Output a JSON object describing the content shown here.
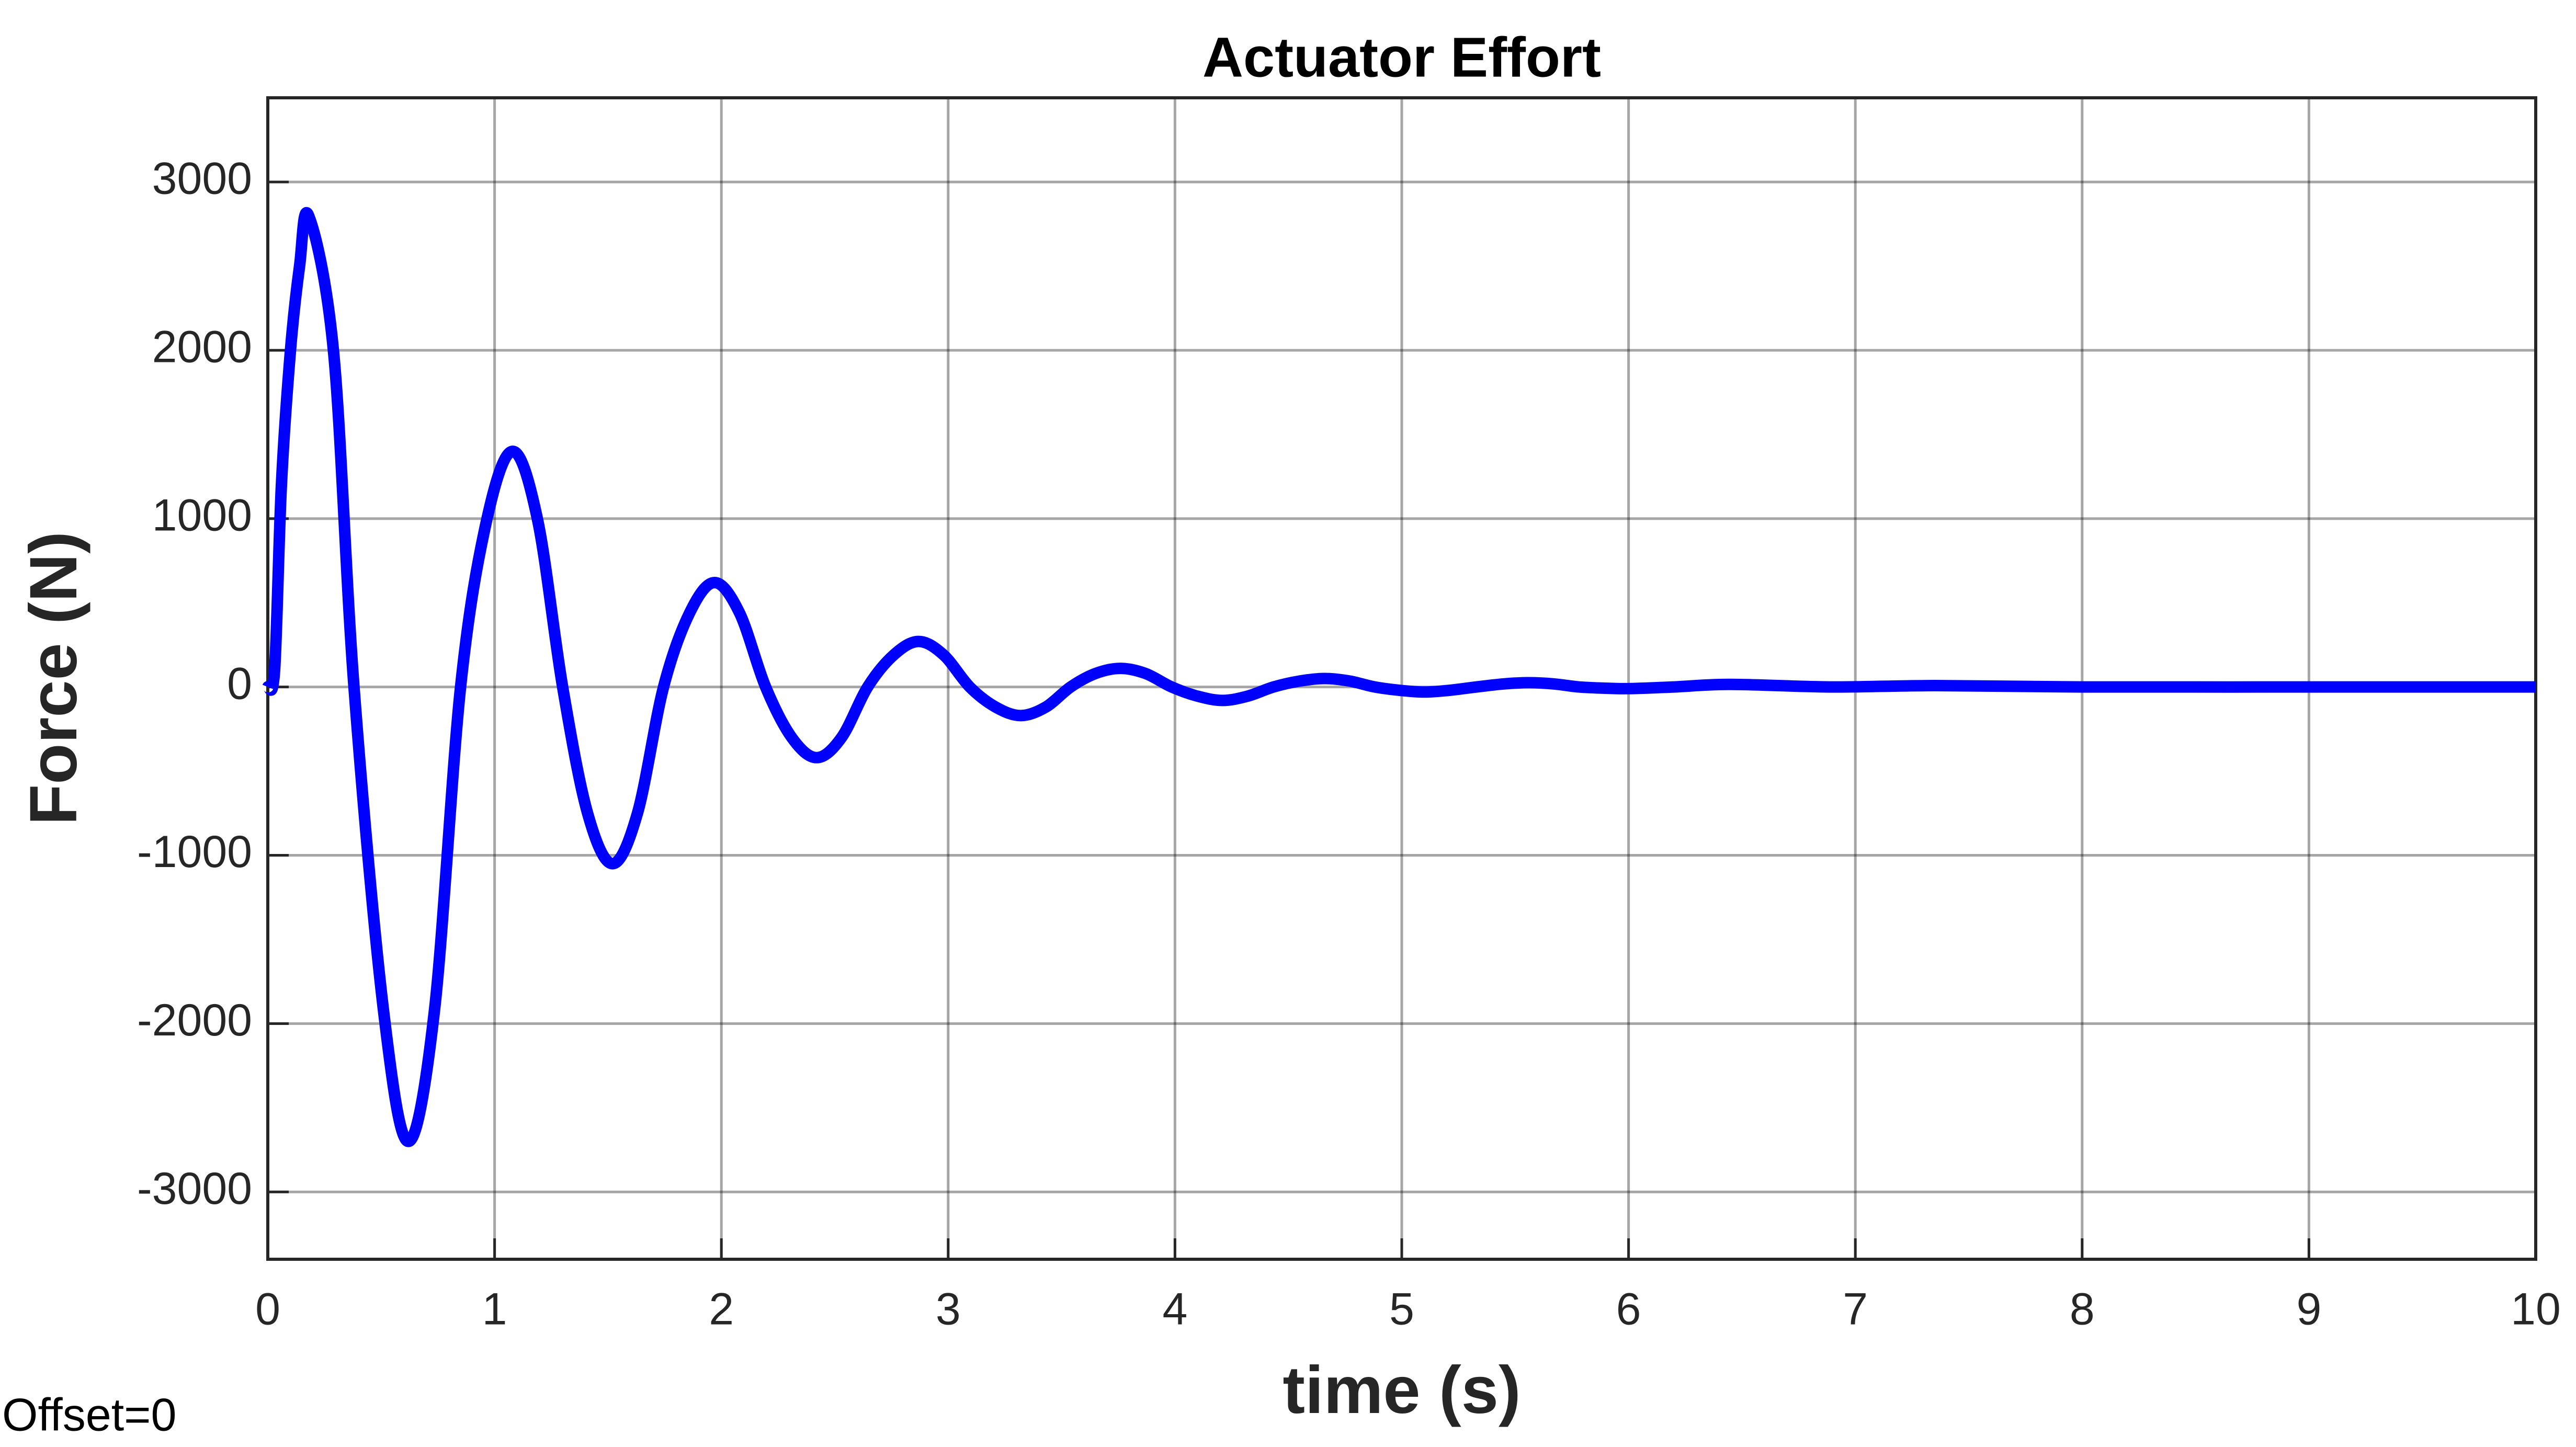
{
  "chart_data": {
    "type": "line",
    "title": "Actuator Effort",
    "xlabel": "time (s)",
    "ylabel": "Force (N)",
    "annotation": "Offset=0",
    "x": [
      0,
      0.03,
      0.06,
      0.1,
      0.14,
      0.18,
      0.29,
      0.38,
      0.51,
      0.62,
      0.735,
      0.85,
      0.965,
      1.08,
      1.19,
      1.3,
      1.41,
      1.52,
      1.63,
      1.745,
      1.86,
      1.97,
      2.08,
      2.195,
      2.31,
      2.42,
      2.53,
      2.645,
      2.76,
      2.87,
      2.98,
      3.095,
      3.21,
      3.32,
      3.43,
      3.54,
      3.65,
      3.76,
      3.87,
      3.985,
      4.1,
      4.21,
      4.32,
      4.435,
      4.55,
      4.66,
      4.77,
      4.88,
      4.99,
      5.1,
      5.21,
      5.33,
      5.45,
      5.56,
      5.67,
      5.78,
      5.89,
      6.0,
      6.2,
      6.45,
      6.9,
      7.35,
      8,
      9,
      10
    ],
    "series": [
      {
        "name": "Force",
        "color": "#0000ff",
        "values": [
          0,
          100,
          1200,
          2000,
          2500,
          2800,
          1990,
          0,
          -1920,
          -2700,
          -1920,
          0,
          990,
          1400,
          990,
          0,
          -750,
          -1050,
          -750,
          0,
          440,
          620,
          440,
          0,
          -300,
          -420,
          -300,
          0,
          190,
          270,
          190,
          0,
          -120,
          -170,
          -120,
          0,
          80,
          110,
          80,
          0,
          -55,
          -80,
          -55,
          0,
          35,
          50,
          35,
          0,
          -20,
          -30,
          -20,
          0,
          18,
          25,
          18,
          0,
          -7,
          -10,
          0,
          15,
          0,
          8,
          0,
          0,
          0
        ]
      }
    ],
    "xlim": [
      0,
      10
    ],
    "xticks": [
      0,
      1,
      2,
      3,
      4,
      5,
      6,
      7,
      8,
      9,
      10
    ],
    "ylim": [
      -3400,
      3500
    ],
    "yticks": [
      -3000,
      -2000,
      -1000,
      0,
      1000,
      2000,
      3000
    ],
    "grid": true
  }
}
